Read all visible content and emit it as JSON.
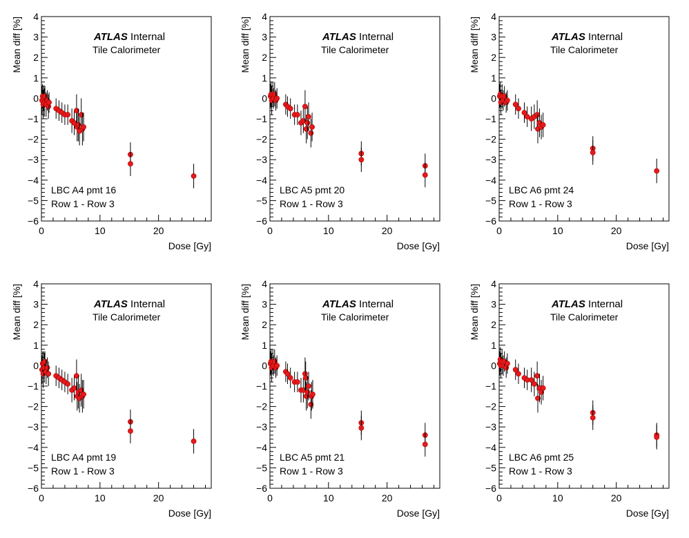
{
  "watermark": {
    "brand": "ATLAS",
    "status": "Internal",
    "detector": "Tile Calorimeter"
  },
  "colors": {
    "marker": "#e41a1c",
    "marker_edge": "#b00000",
    "errorbar": "#000000",
    "frame": "#000000"
  },
  "chart_data": [
    {
      "type": "scatter",
      "label_line1": "LBC A4 pmt 16",
      "label_line2": "Row 1 - Row 3",
      "xlabel": "Dose [Gy]",
      "ylabel": "Mean diff [%]",
      "xlim": [
        0,
        29
      ],
      "ylim": [
        -6,
        4
      ],
      "xticks": [
        0,
        10,
        20
      ],
      "yticks": [
        -6,
        -5,
        -4,
        -3,
        -2,
        -1,
        0,
        1,
        2,
        3,
        4
      ],
      "grid": false,
      "points": [
        {
          "x": 0.1,
          "y": -0.1,
          "err": 0.7
        },
        {
          "x": 0.2,
          "y": 0.1,
          "err": 0.6
        },
        {
          "x": 0.3,
          "y": -0.3,
          "err": 0.7
        },
        {
          "x": 0.4,
          "y": 0.0,
          "err": 0.6
        },
        {
          "x": 0.5,
          "y": -0.2,
          "err": 0.7
        },
        {
          "x": 0.6,
          "y": 0.1,
          "err": 0.5
        },
        {
          "x": 0.8,
          "y": -0.3,
          "err": 0.6
        },
        {
          "x": 1.0,
          "y": -0.1,
          "err": 0.5
        },
        {
          "x": 1.2,
          "y": -0.4,
          "err": 0.6
        },
        {
          "x": 1.3,
          "y": -0.2,
          "err": 0.5
        },
        {
          "x": 2.5,
          "y": -0.5,
          "err": 0.5
        },
        {
          "x": 3.0,
          "y": -0.6,
          "err": 0.5
        },
        {
          "x": 3.5,
          "y": -0.7,
          "err": 0.5
        },
        {
          "x": 4.0,
          "y": -0.8,
          "err": 0.5
        },
        {
          "x": 4.5,
          "y": -0.8,
          "err": 0.5
        },
        {
          "x": 5.2,
          "y": -1.1,
          "err": 0.6
        },
        {
          "x": 5.6,
          "y": -1.2,
          "err": 0.6
        },
        {
          "x": 6.0,
          "y": -0.6,
          "err": 0.8
        },
        {
          "x": 6.1,
          "y": -1.4,
          "err": 0.7
        },
        {
          "x": 6.3,
          "y": -1.3,
          "err": 0.8
        },
        {
          "x": 6.5,
          "y": -1.6,
          "err": 0.7
        },
        {
          "x": 6.8,
          "y": -0.8,
          "err": 0.8
        },
        {
          "x": 7.0,
          "y": -1.5,
          "err": 0.8
        },
        {
          "x": 7.2,
          "y": -1.4,
          "err": 0.7
        },
        {
          "x": 15.2,
          "y": -2.75,
          "err": 0.6
        },
        {
          "x": 15.2,
          "y": -3.2,
          "err": 0.6
        },
        {
          "x": 26.0,
          "y": -3.8,
          "err": 0.6
        }
      ]
    },
    {
      "type": "scatter",
      "label_line1": "LBC A5 pmt 20",
      "label_line2": "Row 1 - Row 3",
      "xlabel": "Dose [Gy]",
      "ylabel": "Mean diff [%]",
      "xlim": [
        0,
        29
      ],
      "ylim": [
        -6,
        4
      ],
      "xticks": [
        0,
        10,
        20
      ],
      "yticks": [
        -6,
        -5,
        -4,
        -3,
        -2,
        -1,
        0,
        1,
        2,
        3,
        4
      ],
      "grid": false,
      "points": [
        {
          "x": 0.1,
          "y": 0.1,
          "err": 0.6
        },
        {
          "x": 0.2,
          "y": 0.2,
          "err": 0.6
        },
        {
          "x": 0.3,
          "y": -0.1,
          "err": 0.7
        },
        {
          "x": 0.5,
          "y": 0.2,
          "err": 0.6
        },
        {
          "x": 0.6,
          "y": 0.0,
          "err": 0.5
        },
        {
          "x": 0.8,
          "y": 0.2,
          "err": 0.6
        },
        {
          "x": 1.0,
          "y": -0.1,
          "err": 0.5
        },
        {
          "x": 1.2,
          "y": 0.0,
          "err": 0.5
        },
        {
          "x": 2.7,
          "y": -0.3,
          "err": 0.5
        },
        {
          "x": 3.0,
          "y": -0.4,
          "err": 0.5
        },
        {
          "x": 3.5,
          "y": -0.5,
          "err": 0.5
        },
        {
          "x": 4.2,
          "y": -0.8,
          "err": 0.5
        },
        {
          "x": 4.7,
          "y": -0.8,
          "err": 0.5
        },
        {
          "x": 5.3,
          "y": -1.2,
          "err": 0.6
        },
        {
          "x": 5.7,
          "y": -1.1,
          "err": 0.6
        },
        {
          "x": 6.0,
          "y": -0.4,
          "err": 0.8
        },
        {
          "x": 6.2,
          "y": -1.5,
          "err": 0.7
        },
        {
          "x": 6.4,
          "y": -1.2,
          "err": 0.8
        },
        {
          "x": 6.6,
          "y": -0.9,
          "err": 0.7
        },
        {
          "x": 7.0,
          "y": -1.7,
          "err": 0.7
        },
        {
          "x": 7.2,
          "y": -1.4,
          "err": 0.7
        },
        {
          "x": 15.6,
          "y": -2.7,
          "err": 0.6
        },
        {
          "x": 15.6,
          "y": -3.0,
          "err": 0.6
        },
        {
          "x": 26.5,
          "y": -3.3,
          "err": 0.6
        },
        {
          "x": 26.5,
          "y": -3.75,
          "err": 0.6
        }
      ]
    },
    {
      "type": "scatter",
      "label_line1": "LBC A6 pmt 24",
      "label_line2": "Row 1 - Row 3",
      "xlabel": "Dose [Gy]",
      "ylabel": "Mean diff [%]",
      "xlim": [
        0,
        29
      ],
      "ylim": [
        -6,
        4
      ],
      "xticks": [
        0,
        10,
        20
      ],
      "yticks": [
        -6,
        -5,
        -4,
        -3,
        -2,
        -1,
        0,
        1,
        2,
        3,
        4
      ],
      "grid": false,
      "points": [
        {
          "x": 0.1,
          "y": 0.1,
          "err": 0.6
        },
        {
          "x": 0.2,
          "y": 0.2,
          "err": 0.6
        },
        {
          "x": 0.3,
          "y": -0.2,
          "err": 0.6
        },
        {
          "x": 0.5,
          "y": 0.1,
          "err": 0.6
        },
        {
          "x": 0.7,
          "y": -0.1,
          "err": 0.5
        },
        {
          "x": 0.9,
          "y": 0.1,
          "err": 0.5
        },
        {
          "x": 1.2,
          "y": -0.2,
          "err": 0.5
        },
        {
          "x": 1.4,
          "y": -0.1,
          "err": 0.5
        },
        {
          "x": 2.8,
          "y": -0.3,
          "err": 0.5
        },
        {
          "x": 3.3,
          "y": -0.5,
          "err": 0.5
        },
        {
          "x": 4.3,
          "y": -0.7,
          "err": 0.5
        },
        {
          "x": 4.8,
          "y": -0.9,
          "err": 0.5
        },
        {
          "x": 5.5,
          "y": -1.0,
          "err": 0.6
        },
        {
          "x": 6.0,
          "y": -0.9,
          "err": 0.6
        },
        {
          "x": 6.5,
          "y": -0.8,
          "err": 0.7
        },
        {
          "x": 6.6,
          "y": -1.5,
          "err": 0.7
        },
        {
          "x": 6.9,
          "y": -1.2,
          "err": 0.7
        },
        {
          "x": 7.2,
          "y": -1.4,
          "err": 0.6
        },
        {
          "x": 7.5,
          "y": -1.3,
          "err": 0.6
        },
        {
          "x": 16.0,
          "y": -2.45,
          "err": 0.6
        },
        {
          "x": 16.0,
          "y": -2.65,
          "err": 0.6
        },
        {
          "x": 26.9,
          "y": -3.55,
          "err": 0.6
        }
      ]
    },
    {
      "type": "scatter",
      "label_line1": "LBC A4 pmt 19",
      "label_line2": "Row 1 - Row 3",
      "xlabel": "Dose [Gy]",
      "ylabel": "Mean diff [%]",
      "xlim": [
        0,
        29
      ],
      "ylim": [
        -6,
        4
      ],
      "xticks": [
        0,
        10,
        20
      ],
      "yticks": [
        -6,
        -5,
        -4,
        -3,
        -2,
        -1,
        0,
        1,
        2,
        3,
        4
      ],
      "grid": false,
      "points": [
        {
          "x": 0.1,
          "y": -0.2,
          "err": 0.7
        },
        {
          "x": 0.2,
          "y": 0.1,
          "err": 0.6
        },
        {
          "x": 0.3,
          "y": -0.4,
          "err": 0.7
        },
        {
          "x": 0.4,
          "y": 0.1,
          "err": 0.6
        },
        {
          "x": 0.5,
          "y": -0.1,
          "err": 0.7
        },
        {
          "x": 0.6,
          "y": 0.2,
          "err": 0.5
        },
        {
          "x": 0.8,
          "y": -0.3,
          "err": 0.6
        },
        {
          "x": 1.0,
          "y": -0.1,
          "err": 0.5
        },
        {
          "x": 1.2,
          "y": -0.4,
          "err": 0.6
        },
        {
          "x": 2.5,
          "y": -0.5,
          "err": 0.5
        },
        {
          "x": 3.0,
          "y": -0.6,
          "err": 0.5
        },
        {
          "x": 3.5,
          "y": -0.7,
          "err": 0.5
        },
        {
          "x": 4.0,
          "y": -0.8,
          "err": 0.5
        },
        {
          "x": 4.5,
          "y": -0.9,
          "err": 0.5
        },
        {
          "x": 5.2,
          "y": -1.2,
          "err": 0.6
        },
        {
          "x": 5.6,
          "y": -1.1,
          "err": 0.6
        },
        {
          "x": 6.0,
          "y": -0.5,
          "err": 0.8
        },
        {
          "x": 6.1,
          "y": -1.5,
          "err": 0.7
        },
        {
          "x": 6.3,
          "y": -1.3,
          "err": 0.8
        },
        {
          "x": 6.5,
          "y": -1.6,
          "err": 0.7
        },
        {
          "x": 6.8,
          "y": -1.2,
          "err": 0.8
        },
        {
          "x": 7.0,
          "y": -1.5,
          "err": 0.8
        },
        {
          "x": 7.2,
          "y": -1.4,
          "err": 0.7
        },
        {
          "x": 15.2,
          "y": -2.75,
          "err": 0.6
        },
        {
          "x": 15.2,
          "y": -3.2,
          "err": 0.6
        },
        {
          "x": 26.0,
          "y": -3.7,
          "err": 0.6
        }
      ]
    },
    {
      "type": "scatter",
      "label_line1": "LBC A5 pmt 21",
      "label_line2": "Row 1 - Row 3",
      "xlabel": "Dose [Gy]",
      "ylabel": "Mean diff [%]",
      "xlim": [
        0,
        29
      ],
      "ylim": [
        -6,
        4
      ],
      "xticks": [
        0,
        10,
        20
      ],
      "yticks": [
        -6,
        -5,
        -4,
        -3,
        -2,
        -1,
        0,
        1,
        2,
        3,
        4
      ],
      "grid": false,
      "points": [
        {
          "x": 0.1,
          "y": 0.1,
          "err": 0.6
        },
        {
          "x": 0.2,
          "y": 0.2,
          "err": 0.6
        },
        {
          "x": 0.3,
          "y": -0.1,
          "err": 0.7
        },
        {
          "x": 0.5,
          "y": 0.2,
          "err": 0.6
        },
        {
          "x": 0.6,
          "y": 0.0,
          "err": 0.5
        },
        {
          "x": 0.8,
          "y": 0.2,
          "err": 0.6
        },
        {
          "x": 1.0,
          "y": -0.1,
          "err": 0.5
        },
        {
          "x": 1.2,
          "y": 0.0,
          "err": 0.5
        },
        {
          "x": 2.7,
          "y": -0.3,
          "err": 0.5
        },
        {
          "x": 3.0,
          "y": -0.4,
          "err": 0.5
        },
        {
          "x": 3.5,
          "y": -0.6,
          "err": 0.5
        },
        {
          "x": 4.2,
          "y": -0.8,
          "err": 0.5
        },
        {
          "x": 4.7,
          "y": -0.8,
          "err": 0.5
        },
        {
          "x": 5.3,
          "y": -1.2,
          "err": 0.6
        },
        {
          "x": 5.7,
          "y": -1.2,
          "err": 0.6
        },
        {
          "x": 6.0,
          "y": -0.4,
          "err": 0.8
        },
        {
          "x": 6.1,
          "y": -0.6,
          "err": 0.8
        },
        {
          "x": 6.2,
          "y": -1.5,
          "err": 0.7
        },
        {
          "x": 6.4,
          "y": -1.3,
          "err": 0.8
        },
        {
          "x": 6.6,
          "y": -1.0,
          "err": 0.7
        },
        {
          "x": 7.0,
          "y": -1.9,
          "err": 0.7
        },
        {
          "x": 7.1,
          "y": -1.5,
          "err": 0.7
        },
        {
          "x": 7.3,
          "y": -1.4,
          "err": 0.7
        },
        {
          "x": 15.6,
          "y": -2.8,
          "err": 0.6
        },
        {
          "x": 15.6,
          "y": -3.05,
          "err": 0.6
        },
        {
          "x": 26.5,
          "y": -3.4,
          "err": 0.6
        },
        {
          "x": 26.5,
          "y": -3.85,
          "err": 0.6
        }
      ]
    },
    {
      "type": "scatter",
      "label_line1": "LBC A6 pmt 25",
      "label_line2": "Row 1 - Row 3",
      "xlabel": "Dose [Gy]",
      "ylabel": "Mean diff [%]",
      "xlim": [
        0,
        29
      ],
      "ylim": [
        -6,
        4
      ],
      "xticks": [
        0,
        10,
        20
      ],
      "yticks": [
        -6,
        -5,
        -4,
        -3,
        -2,
        -1,
        0,
        1,
        2,
        3,
        4
      ],
      "grid": false,
      "points": [
        {
          "x": 0.1,
          "y": 0.1,
          "err": 0.6
        },
        {
          "x": 0.2,
          "y": 0.3,
          "err": 0.6
        },
        {
          "x": 0.3,
          "y": 0.0,
          "err": 0.6
        },
        {
          "x": 0.5,
          "y": 0.2,
          "err": 0.6
        },
        {
          "x": 0.7,
          "y": 0.0,
          "err": 0.5
        },
        {
          "x": 0.9,
          "y": 0.2,
          "err": 0.5
        },
        {
          "x": 1.2,
          "y": -0.1,
          "err": 0.5
        },
        {
          "x": 1.4,
          "y": 0.1,
          "err": 0.5
        },
        {
          "x": 2.8,
          "y": -0.2,
          "err": 0.5
        },
        {
          "x": 3.3,
          "y": -0.4,
          "err": 0.5
        },
        {
          "x": 4.3,
          "y": -0.6,
          "err": 0.5
        },
        {
          "x": 4.8,
          "y": -0.7,
          "err": 0.5
        },
        {
          "x": 5.5,
          "y": -0.7,
          "err": 0.6
        },
        {
          "x": 6.0,
          "y": -0.9,
          "err": 0.6
        },
        {
          "x": 6.5,
          "y": -0.5,
          "err": 0.7
        },
        {
          "x": 6.6,
          "y": -1.6,
          "err": 0.7
        },
        {
          "x": 6.9,
          "y": -1.1,
          "err": 0.7
        },
        {
          "x": 7.2,
          "y": -1.3,
          "err": 0.6
        },
        {
          "x": 7.5,
          "y": -1.1,
          "err": 0.6
        },
        {
          "x": 16.0,
          "y": -2.3,
          "err": 0.6
        },
        {
          "x": 16.0,
          "y": -2.55,
          "err": 0.6
        },
        {
          "x": 26.9,
          "y": -3.4,
          "err": 0.6
        },
        {
          "x": 26.9,
          "y": -3.5,
          "err": 0.6
        }
      ]
    }
  ]
}
